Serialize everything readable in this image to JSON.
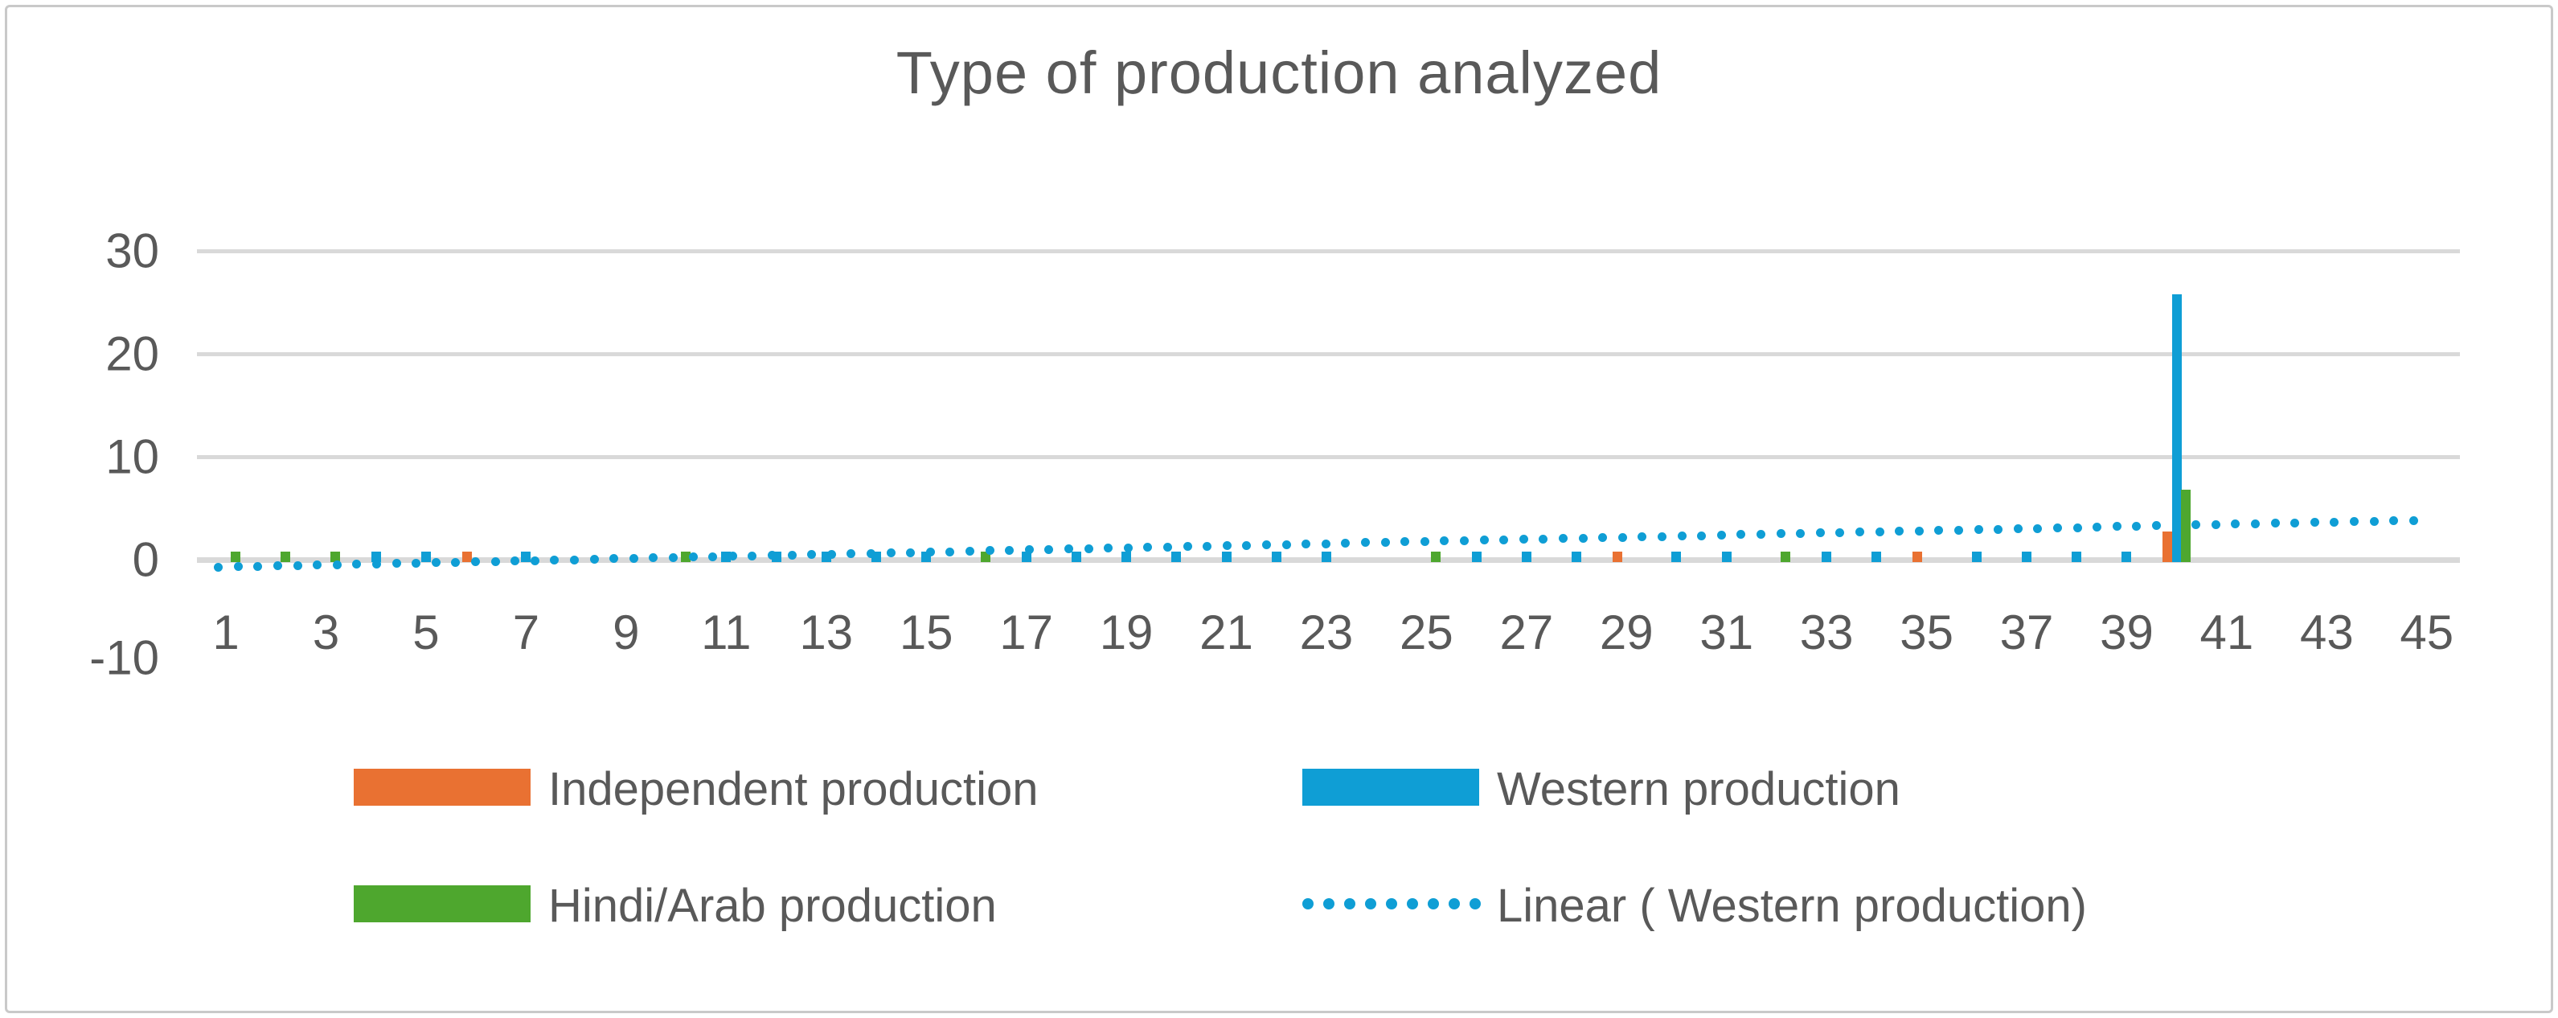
{
  "title": "Type of production analyzed",
  "axes": {
    "y_ticks": [
      "30",
      "20",
      "10",
      "0",
      "-10"
    ],
    "x_ticks": [
      "1",
      "3",
      "5",
      "7",
      "9",
      "11",
      "13",
      "15",
      "17",
      "19",
      "21",
      "23",
      "25",
      "27",
      "29",
      "31",
      "33",
      "35",
      "37",
      "39",
      "41",
      "43",
      "45"
    ]
  },
  "legend": {
    "items": [
      {
        "label": "Independent production",
        "swatch": "rect",
        "color": "#E97132"
      },
      {
        "label": "Western production",
        "swatch": "rect",
        "color": "#0F9ED5"
      },
      {
        "label": "Hindi/Arab production",
        "swatch": "rect",
        "color": "#4EA72E"
      },
      {
        "label": "Linear ( Western production)",
        "swatch": "dotted-line",
        "color": "#0F9ED5"
      }
    ]
  },
  "colors": {
    "grid": "#D9D9D9",
    "axis_line": "#D9D9D9",
    "text": "#595959",
    "border": "#C9C9C9",
    "background": "#FFFFFF"
  },
  "chart_data": {
    "type": "bar",
    "title": "Type of production analyzed",
    "categories": [
      1,
      2,
      3,
      4,
      5,
      6,
      7,
      8,
      9,
      10,
      11,
      12,
      13,
      14,
      15,
      16,
      17,
      18,
      19,
      20,
      21,
      22,
      23,
      24,
      25,
      26,
      27,
      28,
      29,
      30,
      31,
      32,
      33,
      34,
      35,
      36,
      37,
      38,
      39,
      40,
      41,
      42,
      43,
      44,
      45
    ],
    "series": [
      {
        "name": "Independent production",
        "color": "#E97132",
        "values": [
          null,
          null,
          null,
          null,
          null,
          1,
          null,
          null,
          null,
          null,
          null,
          null,
          null,
          null,
          null,
          null,
          null,
          null,
          null,
          null,
          null,
          null,
          null,
          null,
          null,
          null,
          null,
          null,
          1,
          null,
          null,
          null,
          null,
          null,
          1,
          null,
          null,
          null,
          null,
          3,
          null,
          null,
          null,
          null,
          null
        ]
      },
      {
        "name": "Western production",
        "color": "#0F9ED5",
        "values": [
          null,
          null,
          null,
          1,
          1,
          null,
          1,
          null,
          null,
          null,
          1,
          1,
          1,
          1,
          1,
          null,
          1,
          1,
          1,
          1,
          1,
          1,
          1,
          null,
          null,
          1,
          1,
          1,
          null,
          1,
          1,
          null,
          1,
          1,
          null,
          1,
          1,
          1,
          1,
          26,
          null,
          null,
          null,
          null,
          null
        ]
      },
      {
        "name": "Hindi/Arab production",
        "color": "#4EA72E",
        "values": [
          1,
          1,
          1,
          null,
          null,
          null,
          null,
          null,
          null,
          1,
          null,
          null,
          null,
          null,
          null,
          1,
          null,
          null,
          null,
          null,
          null,
          null,
          null,
          null,
          1,
          null,
          null,
          null,
          null,
          null,
          null,
          1,
          null,
          null,
          null,
          null,
          null,
          null,
          null,
          7,
          null,
          null,
          null,
          null,
          null
        ]
      }
    ],
    "trendline": {
      "label": "Linear ( Western production)",
      "on_series": "Western production",
      "style": "dotted",
      "color": "#0F9ED5",
      "slope": 0.104,
      "intercept": -0.83,
      "x_range": [
        1,
        45
      ],
      "y_start": -0.73,
      "y_end": 3.85
    },
    "ylim": [
      -10,
      30
    ],
    "y_gridlines": [
      10,
      20,
      30
    ],
    "grid": true,
    "legend_position": "bottom",
    "xlabel": "",
    "ylabel": ""
  }
}
